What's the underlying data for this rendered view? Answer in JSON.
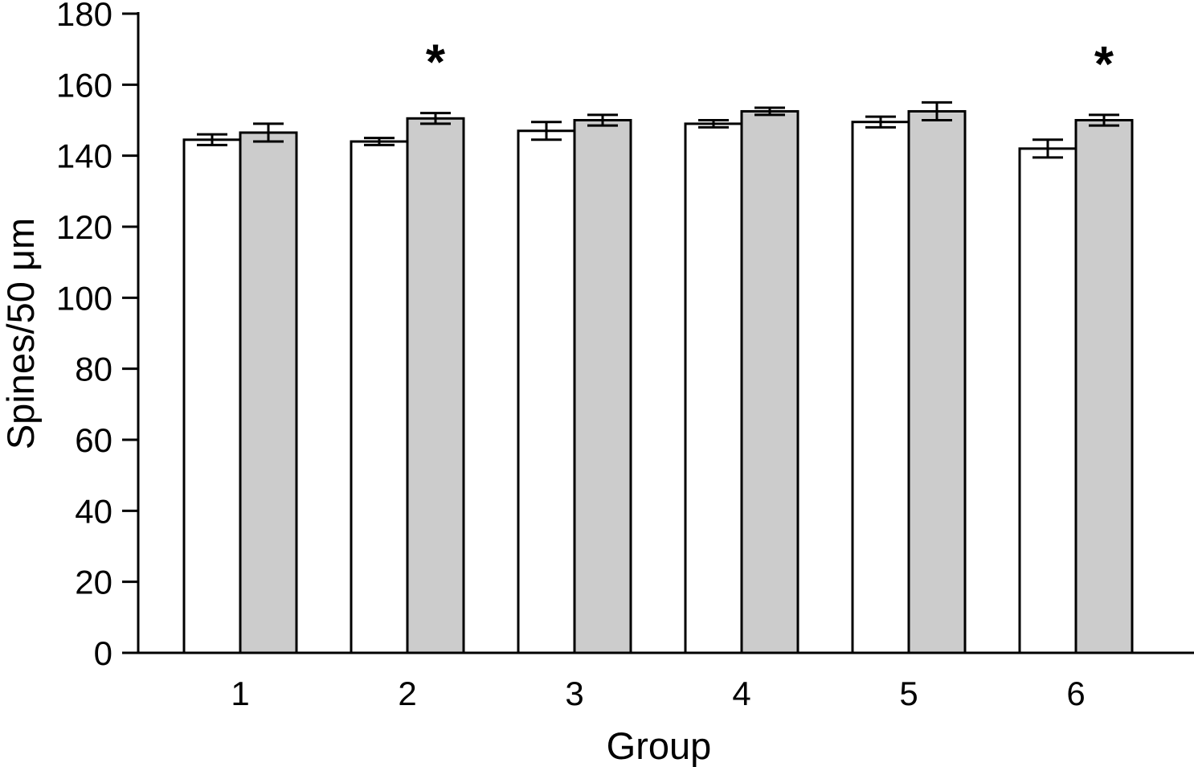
{
  "chart_data": {
    "type": "bar",
    "title": "",
    "xlabel": "Group",
    "ylabel": "Spines/50 μm",
    "ylim": [
      0,
      180
    ],
    "ytick_step": 20,
    "yticks": [
      0,
      20,
      40,
      60,
      80,
      100,
      120,
      140,
      160,
      180
    ],
    "grid": false,
    "legend_position": "none",
    "categories": [
      "1",
      "2",
      "3",
      "4",
      "5",
      "6"
    ],
    "series": [
      {
        "name": "white-bars",
        "fill": "#ffffff",
        "values": [
          144.5,
          144,
          147,
          149,
          149.5,
          142
        ],
        "errors": [
          1.5,
          1,
          2.5,
          1,
          1.5,
          2.5
        ]
      },
      {
        "name": "gray-bars",
        "fill": "#cccccc",
        "values": [
          146.5,
          150.5,
          150,
          152.5,
          152.5,
          150
        ],
        "errors": [
          2.5,
          1.5,
          1.5,
          1,
          2.5,
          1.5
        ]
      }
    ],
    "annotations": [
      {
        "text": "*",
        "category": "2",
        "category_index": 1,
        "series": "gray-bars",
        "meaning": "significant"
      },
      {
        "text": "*",
        "category": "6",
        "category_index": 5,
        "series": "gray-bars",
        "meaning": "significant"
      }
    ],
    "colors": {
      "axis": "#000000",
      "bar_outline": "#000000",
      "white_bar_fill": "#ffffff",
      "gray_bar_fill": "#cccccc",
      "background": "#ffffff"
    }
  }
}
